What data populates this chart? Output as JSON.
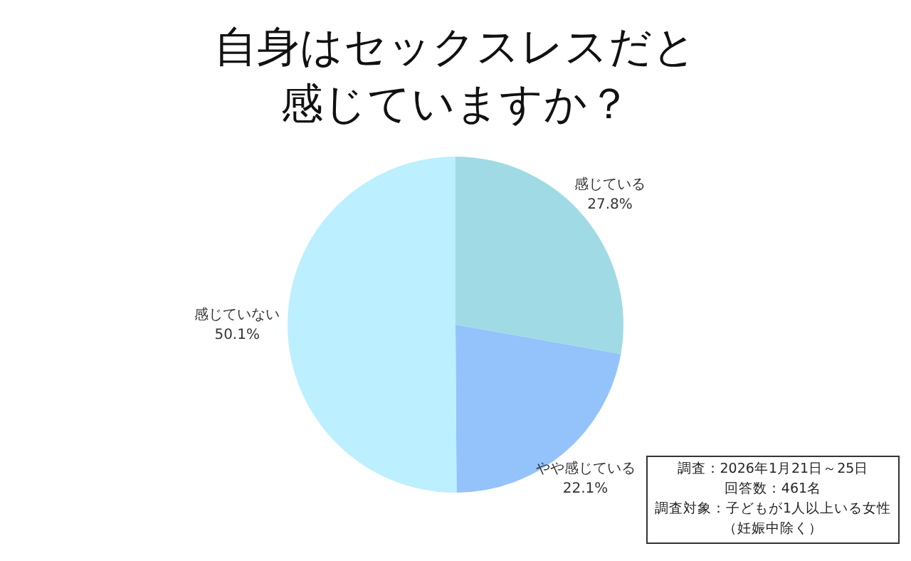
{
  "chart_data": {
    "type": "pie",
    "title": "自身はセックスレスだと感じていますか？",
    "categories": [
      "感じている",
      "やや感じている",
      "感じていない"
    ],
    "values": [
      27.8,
      22.1,
      50.1
    ],
    "value_labels": [
      "27.8%",
      "22.1%",
      "50.1%"
    ],
    "colors": [
      "#a0dbe5",
      "#94c3fb",
      "#bcefff"
    ],
    "legend": false,
    "annotations": [
      "調査：2026年1月21日～25日",
      "回答数：461名",
      "調査対象：子どもが1人以上いる女性",
      "（妊娠中除く）"
    ]
  }
}
